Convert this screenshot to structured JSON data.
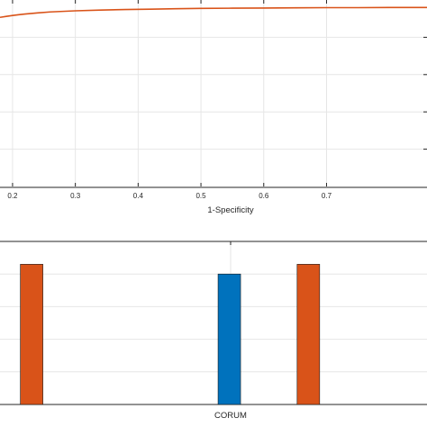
{
  "chart_data": [
    {
      "type": "line",
      "xlabel": "1-Specificity",
      "xlim": [
        0.18,
        0.86
      ],
      "ylim": [
        0.0,
        1.0
      ],
      "x_ticks": [
        "0.2",
        "0.3",
        "0.4",
        "0.5",
        "0.6",
        "0.7"
      ],
      "grid": true,
      "series": [
        {
          "color": "#d95319",
          "x": [
            0.18,
            0.19,
            0.2,
            0.21,
            0.22,
            0.24,
            0.26,
            0.28,
            0.3,
            0.34,
            0.38,
            0.42,
            0.46,
            0.5,
            0.55,
            0.6,
            0.65,
            0.7,
            0.75,
            0.8,
            0.86
          ],
          "y": [
            0.907,
            0.912,
            0.917,
            0.921,
            0.925,
            0.931,
            0.936,
            0.939,
            0.942,
            0.946,
            0.949,
            0.951,
            0.953,
            0.955,
            0.956,
            0.957,
            0.958,
            0.959,
            0.959,
            0.96,
            0.96
          ]
        }
      ]
    },
    {
      "type": "bar",
      "xlabel": "CORUM",
      "ylim": [
        0.0,
        1.0
      ],
      "grid": true,
      "bars": [
        {
          "x": 0.0,
          "value": 0.86,
          "color": "#d95319"
        },
        {
          "x": 2.5,
          "value": 0.8,
          "color": "#0072bd"
        },
        {
          "x": 3.5,
          "value": 0.86,
          "color": "#d95319"
        }
      ]
    }
  ]
}
